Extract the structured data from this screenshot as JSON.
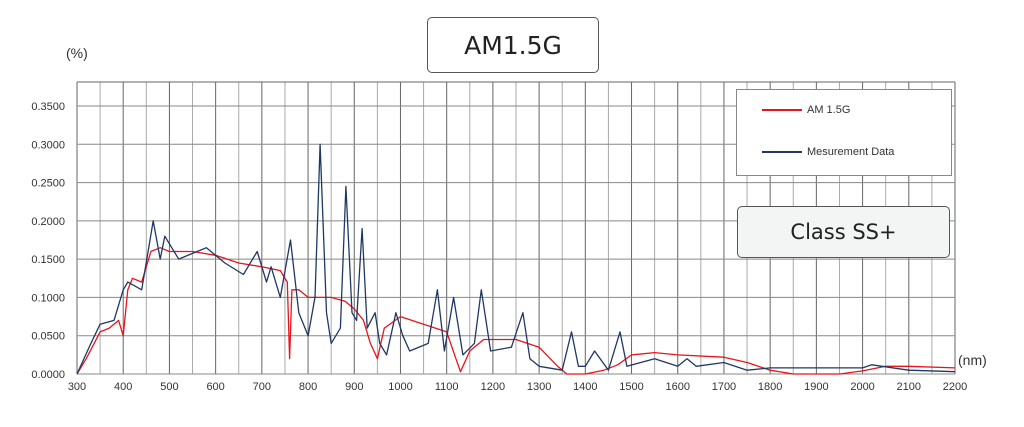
{
  "title": "AM1.5G",
  "badge": "Class SS+",
  "chart_data": {
    "type": "line",
    "title": "AM1.5G",
    "xlabel": "(nm)",
    "ylabel": "(%)",
    "xlim": [
      300,
      2200
    ],
    "ylim": [
      0,
      0.35
    ],
    "xticks": [
      300,
      400,
      500,
      600,
      700,
      800,
      900,
      1000,
      1100,
      1200,
      1300,
      1400,
      1500,
      1600,
      1700,
      1800,
      1900,
      2000,
      2100,
      2200
    ],
    "yticks": [
      "0.0000",
      "0.0500",
      "0.1000",
      "0.1500",
      "0.2000",
      "0.2500",
      "0.3000",
      "0.3500"
    ],
    "grid": true,
    "legend_placement": "top-right",
    "series": [
      {
        "name": "AM 1.5G",
        "color": "#e8141c",
        "points": [
          [
            300,
            0
          ],
          [
            320,
            0.02
          ],
          [
            350,
            0.055
          ],
          [
            370,
            0.06
          ],
          [
            390,
            0.07
          ],
          [
            400,
            0.05
          ],
          [
            410,
            0.11
          ],
          [
            420,
            0.125
          ],
          [
            440,
            0.12
          ],
          [
            460,
            0.16
          ],
          [
            480,
            0.165
          ],
          [
            500,
            0.16
          ],
          [
            550,
            0.16
          ],
          [
            600,
            0.155
          ],
          [
            650,
            0.145
          ],
          [
            700,
            0.14
          ],
          [
            740,
            0.135
          ],
          [
            755,
            0.12
          ],
          [
            760,
            0.02
          ],
          [
            765,
            0.11
          ],
          [
            780,
            0.11
          ],
          [
            800,
            0.1
          ],
          [
            850,
            0.1
          ],
          [
            880,
            0.095
          ],
          [
            900,
            0.085
          ],
          [
            920,
            0.07
          ],
          [
            935,
            0.04
          ],
          [
            950,
            0.02
          ],
          [
            965,
            0.06
          ],
          [
            1000,
            0.075
          ],
          [
            1050,
            0.065
          ],
          [
            1100,
            0.055
          ],
          [
            1120,
            0.02
          ],
          [
            1130,
            0.003
          ],
          [
            1150,
            0.03
          ],
          [
            1180,
            0.045
          ],
          [
            1250,
            0.045
          ],
          [
            1300,
            0.035
          ],
          [
            1340,
            0.01
          ],
          [
            1360,
            0
          ],
          [
            1400,
            0
          ],
          [
            1440,
            0.005
          ],
          [
            1470,
            0.012
          ],
          [
            1500,
            0.025
          ],
          [
            1550,
            0.028
          ],
          [
            1600,
            0.025
          ],
          [
            1700,
            0.022
          ],
          [
            1750,
            0.015
          ],
          [
            1800,
            0.005
          ],
          [
            1850,
            0
          ],
          [
            1950,
            0
          ],
          [
            2000,
            0.004
          ],
          [
            2050,
            0.01
          ],
          [
            2100,
            0.01
          ],
          [
            2200,
            0.008
          ]
        ]
      },
      {
        "name": "Mesurement Data",
        "color": "#1f3864",
        "points": [
          [
            300,
            0
          ],
          [
            330,
            0.04
          ],
          [
            350,
            0.065
          ],
          [
            380,
            0.07
          ],
          [
            400,
            0.11
          ],
          [
            410,
            0.12
          ],
          [
            440,
            0.11
          ],
          [
            465,
            0.2
          ],
          [
            480,
            0.15
          ],
          [
            490,
            0.18
          ],
          [
            520,
            0.15
          ],
          [
            560,
            0.16
          ],
          [
            580,
            0.165
          ],
          [
            620,
            0.145
          ],
          [
            660,
            0.13
          ],
          [
            690,
            0.16
          ],
          [
            710,
            0.12
          ],
          [
            720,
            0.14
          ],
          [
            740,
            0.1
          ],
          [
            762,
            0.175
          ],
          [
            780,
            0.08
          ],
          [
            800,
            0.05
          ],
          [
            815,
            0.1
          ],
          [
            826,
            0.3
          ],
          [
            840,
            0.08
          ],
          [
            850,
            0.04
          ],
          [
            870,
            0.06
          ],
          [
            882,
            0.245
          ],
          [
            895,
            0.08
          ],
          [
            905,
            0.07
          ],
          [
            917,
            0.19
          ],
          [
            928,
            0.06
          ],
          [
            945,
            0.08
          ],
          [
            955,
            0.04
          ],
          [
            970,
            0.025
          ],
          [
            990,
            0.08
          ],
          [
            1005,
            0.05
          ],
          [
            1020,
            0.03
          ],
          [
            1060,
            0.04
          ],
          [
            1080,
            0.11
          ],
          [
            1095,
            0.03
          ],
          [
            1115,
            0.1
          ],
          [
            1135,
            0.025
          ],
          [
            1160,
            0.04
          ],
          [
            1175,
            0.11
          ],
          [
            1195,
            0.03
          ],
          [
            1240,
            0.035
          ],
          [
            1265,
            0.08
          ],
          [
            1280,
            0.02
          ],
          [
            1300,
            0.01
          ],
          [
            1350,
            0.005
          ],
          [
            1370,
            0.055
          ],
          [
            1385,
            0.01
          ],
          [
            1400,
            0.01
          ],
          [
            1420,
            0.03
          ],
          [
            1450,
            0.005
          ],
          [
            1475,
            0.055
          ],
          [
            1490,
            0.01
          ],
          [
            1550,
            0.02
          ],
          [
            1600,
            0.01
          ],
          [
            1620,
            0.02
          ],
          [
            1640,
            0.01
          ],
          [
            1700,
            0.015
          ],
          [
            1750,
            0.005
          ],
          [
            1800,
            0.008
          ],
          [
            2000,
            0.008
          ],
          [
            2020,
            0.012
          ],
          [
            2100,
            0.005
          ],
          [
            2200,
            0.003
          ]
        ]
      }
    ]
  }
}
